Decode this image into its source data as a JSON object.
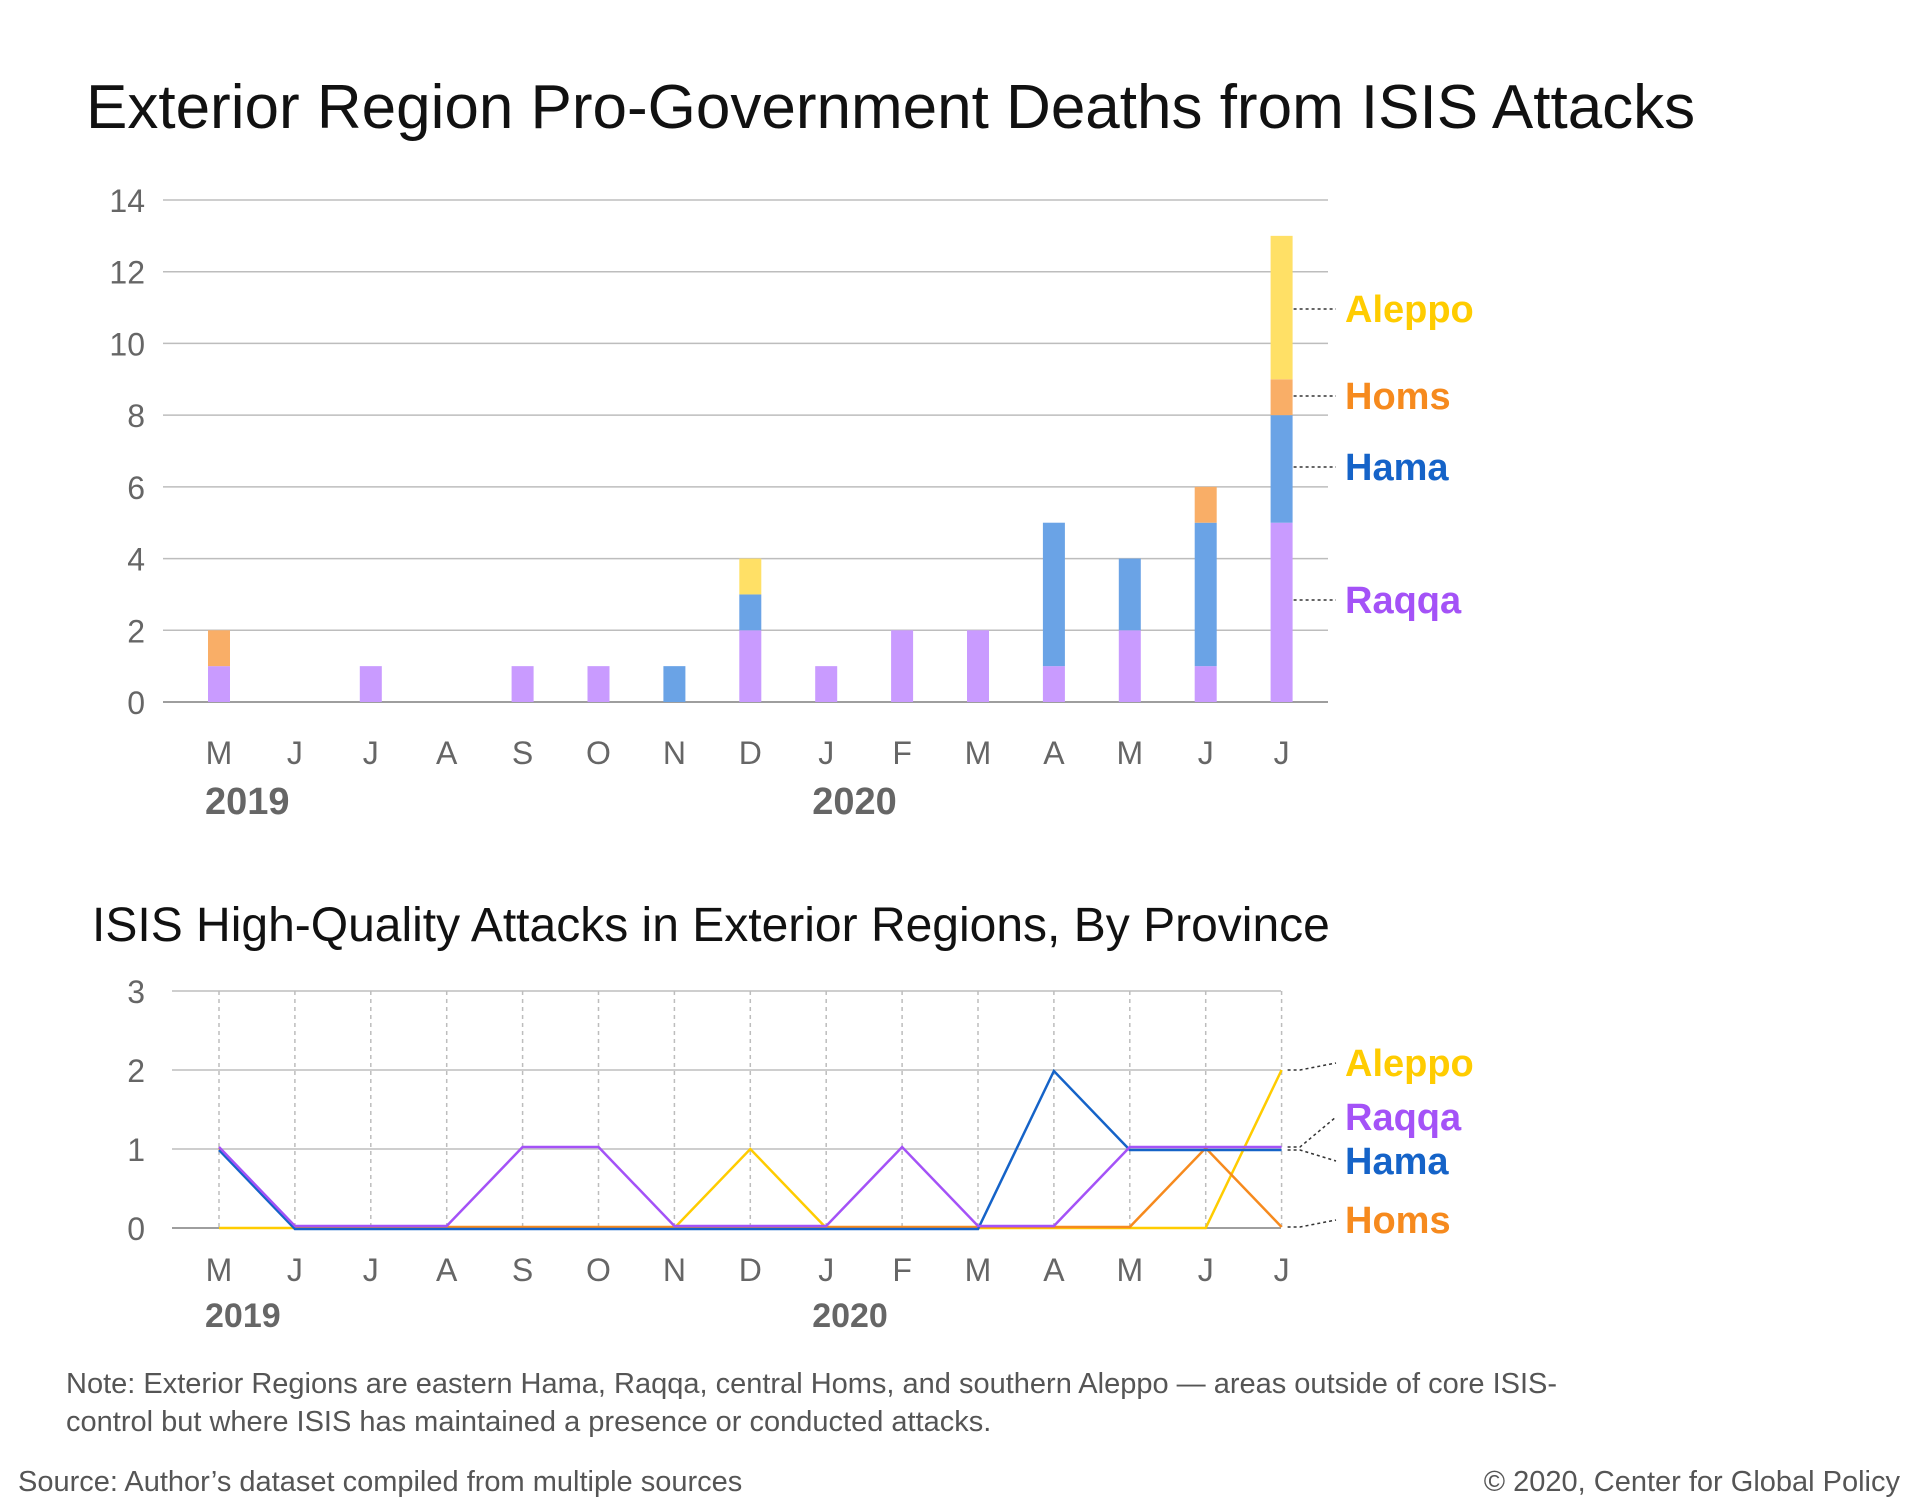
{
  "chart_data": [
    {
      "type": "bar",
      "title": "Exterior Region Pro-Government Deaths from ISIS Attacks",
      "categories": [
        "M",
        "J",
        "J",
        "A",
        "S",
        "O",
        "N",
        "D",
        "J",
        "F",
        "M",
        "A",
        "M",
        "J",
        "J"
      ],
      "year_labels": [
        {
          "label": "2019",
          "at_index": 0
        },
        {
          "label": "2020",
          "at_index": 8
        }
      ],
      "ylim": [
        0,
        14
      ],
      "yticks": [
        "0",
        "2",
        "4",
        "6",
        "8",
        "10",
        "12",
        "14"
      ],
      "stacked": true,
      "series": [
        {
          "name": "Raqqa",
          "color": "#c99bff",
          "label_color": "#a452f7",
          "values": [
            1,
            0,
            1,
            0,
            1,
            1,
            0,
            2,
            1,
            2,
            2,
            1,
            2,
            1,
            5
          ]
        },
        {
          "name": "Hama",
          "color": "#6aa3e6",
          "label_color": "#1563c8",
          "values": [
            0,
            0,
            0,
            0,
            0,
            0,
            1,
            1,
            0,
            0,
            0,
            4,
            2,
            4,
            3
          ]
        },
        {
          "name": "Homs",
          "color": "#f9ae67",
          "label_color": "#f68a1e",
          "values": [
            1,
            0,
            0,
            0,
            0,
            0,
            0,
            0,
            0,
            0,
            0,
            0,
            0,
            1,
            1
          ]
        },
        {
          "name": "Aleppo",
          "color": "#ffe066",
          "label_color": "#ffcc00",
          "values": [
            0,
            0,
            0,
            0,
            0,
            0,
            0,
            1,
            0,
            0,
            0,
            0,
            0,
            0,
            4
          ]
        }
      ],
      "grid": true
    },
    {
      "type": "line",
      "title": "ISIS High-Quality Attacks in Exterior Regions, By Province",
      "categories": [
        "M",
        "J",
        "J",
        "A",
        "S",
        "O",
        "N",
        "D",
        "J",
        "F",
        "M",
        "A",
        "M",
        "J",
        "J"
      ],
      "year_labels": [
        {
          "label": "2019",
          "at_index": 0
        },
        {
          "label": "2020",
          "at_index": 8
        }
      ],
      "ylim": [
        0,
        3
      ],
      "yticks": [
        "0",
        "1",
        "2",
        "3"
      ],
      "series": [
        {
          "name": "Aleppo",
          "color": "#ffcc00",
          "values": [
            0,
            0,
            0,
            0,
            0,
            0,
            0,
            1,
            0,
            0,
            0,
            0,
            0,
            0,
            2
          ]
        },
        {
          "name": "Homs",
          "color": "#f68a1e",
          "values": [
            1,
            0,
            0,
            0,
            0,
            0,
            0,
            0,
            0,
            0,
            0,
            0,
            0,
            1,
            0
          ]
        },
        {
          "name": "Hama",
          "color": "#1563c8",
          "values": [
            1,
            0,
            0,
            0,
            0,
            0,
            0,
            0,
            0,
            0,
            0,
            2,
            1,
            1,
            1
          ]
        },
        {
          "name": "Raqqa",
          "color": "#a452f7",
          "values": [
            1,
            0,
            0,
            0,
            1,
            1,
            0,
            0,
            0,
            1,
            0,
            0,
            1,
            1,
            1
          ]
        }
      ],
      "label_order": [
        "Aleppo",
        "Raqqa",
        "Hama",
        "Homs"
      ],
      "grid": true
    }
  ],
  "footer": {
    "note": "Note: Exterior Regions are eastern Hama, Raqqa, central Homs, and southern Aleppo — areas outside of core ISIS-control but where ISIS has maintained a presence or conducted attacks.",
    "source": "Source: Author’s dataset compiled from multiple sources",
    "copyright": "© 2020, Center for Global Policy"
  },
  "colors": {
    "grid": "#bdbdbd",
    "axis": "#9e9e9e",
    "tick_text": "#666666",
    "year_text": "#666666"
  }
}
